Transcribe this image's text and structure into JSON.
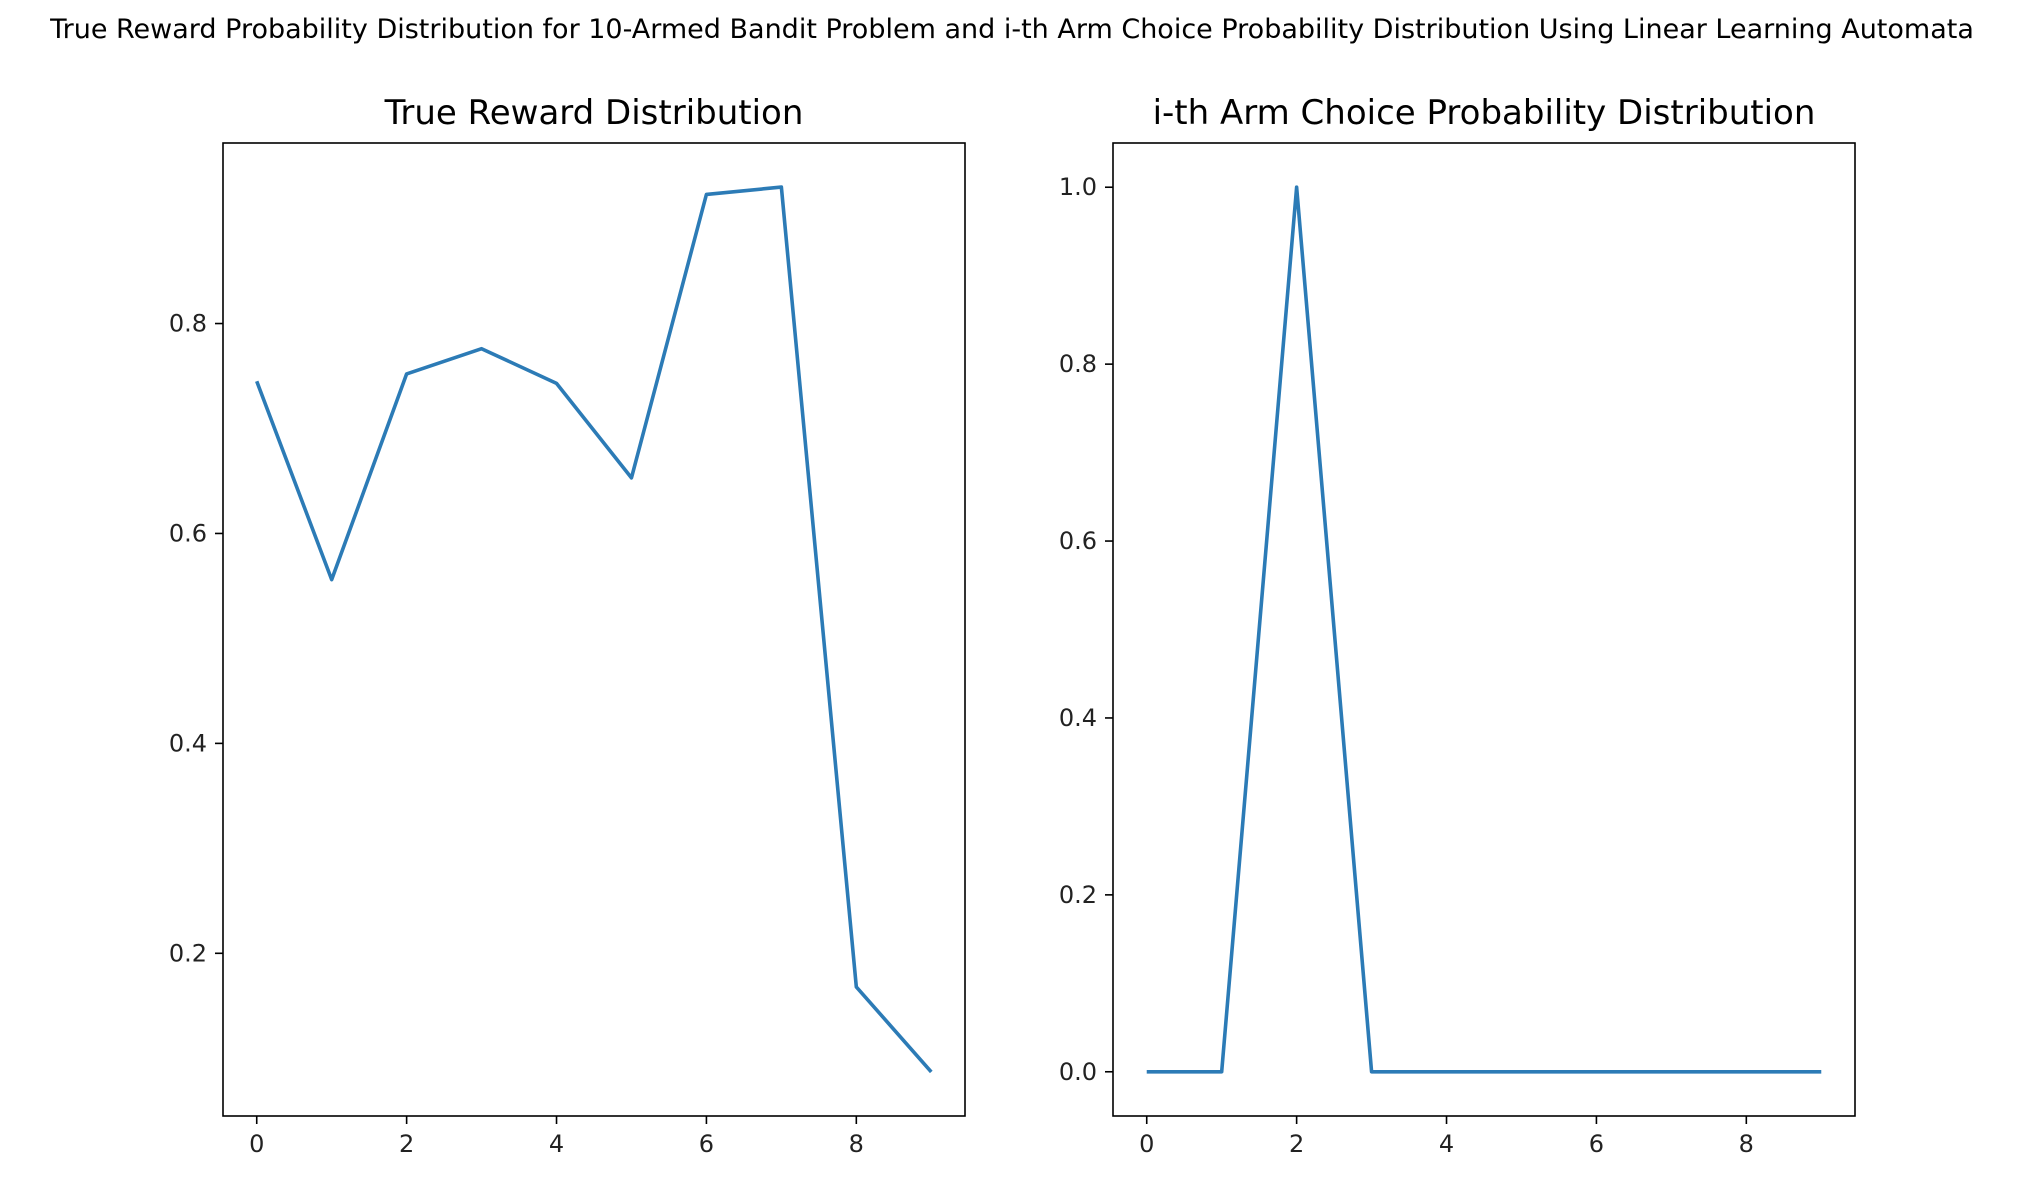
{
  "figure": {
    "suptitle": "True Reward Probability Distribution for 10-Armed Bandit Problem and i-th Arm Choice Probability Distribution Using Linear Learning Automata"
  },
  "chart_data": [
    {
      "type": "line",
      "title": "True Reward Distribution",
      "xlabel": "",
      "ylabel": "",
      "x": [
        0,
        1,
        2,
        3,
        4,
        5,
        6,
        7,
        8,
        9
      ],
      "series": [
        {
          "values": [
            0.745,
            0.556,
            0.752,
            0.776,
            0.743,
            0.653,
            0.923,
            0.93,
            0.168,
            0.087
          ],
          "color": "#2c7bb6"
        }
      ],
      "xlim": [
        -0.45,
        9.45
      ],
      "ylim": [
        0.045,
        0.972
      ],
      "xticks": [
        0,
        2,
        4,
        6,
        8
      ],
      "xtick_labels": [
        "0",
        "2",
        "4",
        "6",
        "8"
      ],
      "yticks": [
        0.2,
        0.4,
        0.6,
        0.8
      ],
      "ytick_labels": [
        "0.2",
        "0.4",
        "0.6",
        "0.8"
      ],
      "grid": false
    },
    {
      "type": "line",
      "title": "i-th Arm Choice Probability Distribution",
      "xlabel": "",
      "ylabel": "",
      "x": [
        0,
        1,
        2,
        3,
        4,
        5,
        6,
        7,
        8,
        9
      ],
      "series": [
        {
          "values": [
            0,
            0,
            1,
            0,
            0,
            0,
            0,
            0,
            0,
            0
          ],
          "color": "#2c7bb6"
        }
      ],
      "xlim": [
        -0.45,
        9.45
      ],
      "ylim": [
        -0.05,
        1.05
      ],
      "xticks": [
        0,
        2,
        4,
        6,
        8
      ],
      "xtick_labels": [
        "0",
        "2",
        "4",
        "6",
        "8"
      ],
      "yticks": [
        0.0,
        0.2,
        0.4,
        0.6,
        0.8,
        1.0
      ],
      "ytick_labels": [
        "0.0",
        "0.2",
        "0.4",
        "0.6",
        "0.8",
        "1.0"
      ],
      "grid": false
    }
  ]
}
